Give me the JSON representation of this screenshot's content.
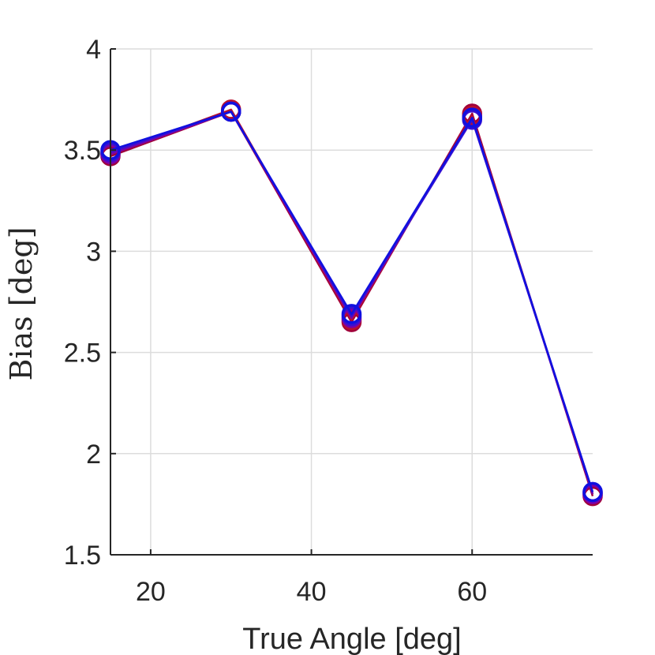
{
  "chart_data": {
    "type": "line",
    "xlabel": "True Angle [deg]",
    "ylabel": "Bias [deg]",
    "xlim": [
      15,
      75
    ],
    "ylim": [
      1.5,
      4
    ],
    "xticks": [
      20,
      40,
      60
    ],
    "yticks": [
      1.5,
      2,
      2.5,
      3,
      3.5,
      4
    ],
    "xtick_labels": [
      "20",
      "40",
      "60"
    ],
    "ytick_labels": [
      "1.5",
      "2",
      "2.5",
      "3",
      "3.5",
      "4"
    ],
    "grid": true,
    "marker": "circle",
    "x": [
      15,
      30,
      45,
      60,
      75
    ],
    "series": [
      {
        "color": "#a0003a",
        "values": [
          3.47,
          3.69,
          2.65,
          3.68,
          1.79
        ]
      },
      {
        "color": "#b8102e",
        "values": [
          3.48,
          3.7,
          2.66,
          3.67,
          1.8
        ]
      },
      {
        "color": "#7a00a8",
        "values": [
          3.48,
          3.69,
          2.67,
          3.66,
          1.8
        ]
      },
      {
        "color": "#3a10d0",
        "values": [
          3.49,
          3.69,
          2.68,
          3.65,
          1.81
        ]
      },
      {
        "color": "#1010e0",
        "values": [
          3.5,
          3.69,
          2.69,
          3.66,
          1.81
        ]
      }
    ]
  }
}
